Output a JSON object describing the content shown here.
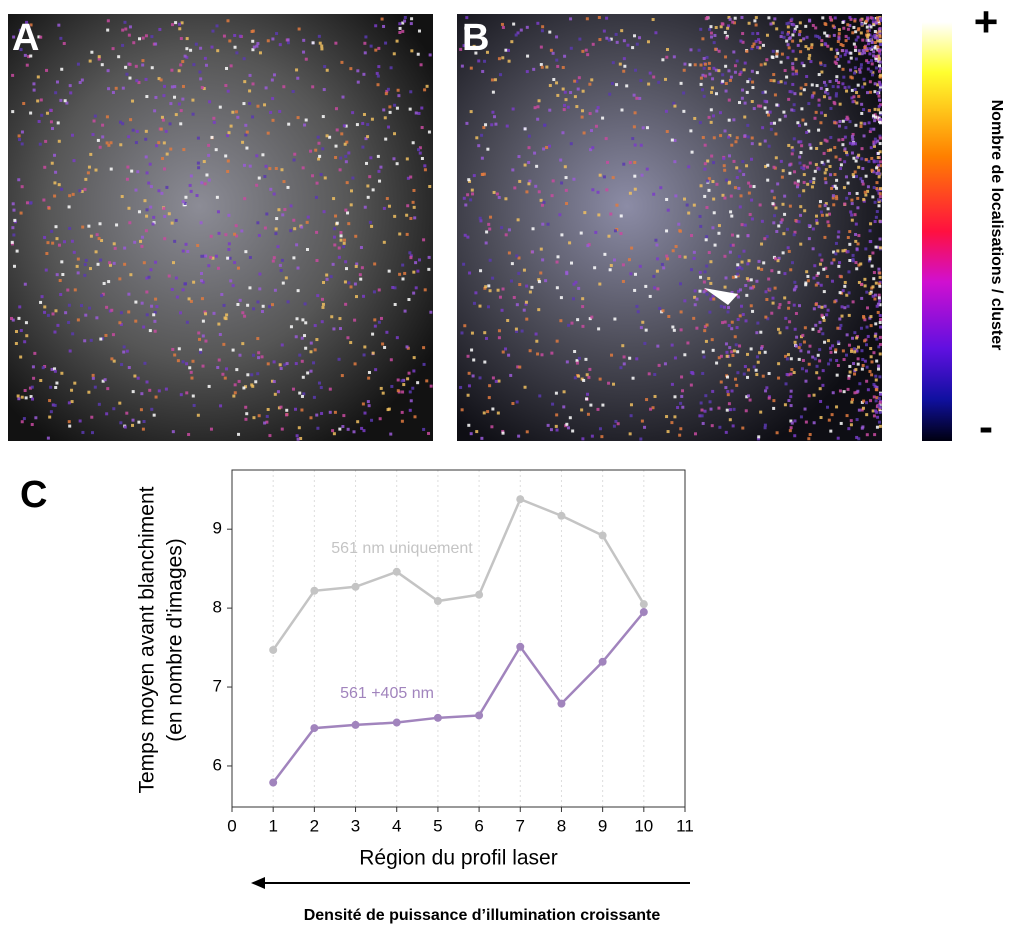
{
  "panels": [
    {
      "label": "A"
    },
    {
      "label": "B"
    }
  ],
  "colorbar": {
    "top_label": "+",
    "bottom_label": "-",
    "title": "Nombre de localisations / cluster"
  },
  "chart_data": {
    "type": "line",
    "panel_label": "C",
    "x": [
      1,
      2,
      3,
      4,
      5,
      6,
      7,
      8,
      9,
      10
    ],
    "series": [
      {
        "name": "561 nm uniquement",
        "color": "#c4c4c4",
        "values": [
          7.47,
          8.22,
          8.27,
          8.46,
          8.09,
          8.17,
          9.38,
          9.17,
          8.92,
          8.05
        ]
      },
      {
        "name": "561 +405 nm",
        "color": "#a184bd",
        "values": [
          5.79,
          6.48,
          6.52,
          6.55,
          6.61,
          6.64,
          7.51,
          6.79,
          7.32,
          7.95
        ]
      }
    ],
    "xlim": [
      0,
      11
    ],
    "xticks": [
      0,
      1,
      2,
      3,
      4,
      5,
      6,
      7,
      8,
      9,
      10,
      11
    ],
    "ylim": [
      5.48,
      9.75
    ],
    "yticks": [
      6,
      7,
      8,
      9
    ],
    "xlabel": "Région du profil laser",
    "ylabel": [
      "Temps moyen avant blanchiment",
      "(en nombre d'images)"
    ],
    "grid": "x",
    "arrow_caption": "Densité de puissance d’illumination croissante"
  }
}
